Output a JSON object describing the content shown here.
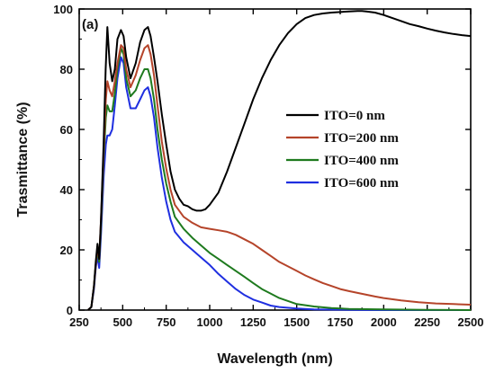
{
  "chart_data": {
    "type": "line",
    "title": "",
    "panel_label": "(a)",
    "xlabel": "Wavelength (nm)",
    "ylabel": "Trasmittance (%)",
    "xlim": [
      250,
      2500
    ],
    "ylim": [
      0,
      100
    ],
    "xticks": [
      250,
      500,
      750,
      1000,
      1250,
      1500,
      1750,
      2000,
      2250,
      2500
    ],
    "yticks": [
      0,
      20,
      40,
      60,
      80,
      100
    ],
    "grid": false,
    "legend_position": "upper-right",
    "series": [
      {
        "name": "ITO=0 nm",
        "color": "#000000",
        "points": [
          [
            300,
            0
          ],
          [
            320,
            1
          ],
          [
            335,
            8
          ],
          [
            345,
            16
          ],
          [
            355,
            22
          ],
          [
            365,
            17
          ],
          [
            375,
            30
          ],
          [
            390,
            55
          ],
          [
            402,
            80
          ],
          [
            412,
            94
          ],
          [
            425,
            82
          ],
          [
            440,
            76
          ],
          [
            455,
            80
          ],
          [
            470,
            90
          ],
          [
            490,
            93
          ],
          [
            505,
            91
          ],
          [
            520,
            84
          ],
          [
            545,
            77
          ],
          [
            575,
            82
          ],
          [
            600,
            89
          ],
          [
            625,
            93
          ],
          [
            645,
            94
          ],
          [
            660,
            91
          ],
          [
            680,
            84
          ],
          [
            700,
            76
          ],
          [
            725,
            65
          ],
          [
            750,
            55
          ],
          [
            775,
            46
          ],
          [
            800,
            40
          ],
          [
            825,
            37
          ],
          [
            850,
            35
          ],
          [
            875,
            34.5
          ],
          [
            900,
            33.5
          ],
          [
            925,
            33
          ],
          [
            950,
            33
          ],
          [
            975,
            33.5
          ],
          [
            1000,
            35
          ],
          [
            1050,
            39
          ],
          [
            1100,
            46
          ],
          [
            1150,
            54
          ],
          [
            1200,
            62
          ],
          [
            1250,
            70
          ],
          [
            1300,
            77
          ],
          [
            1350,
            83
          ],
          [
            1400,
            88
          ],
          [
            1450,
            92
          ],
          [
            1500,
            95
          ],
          [
            1550,
            97
          ],
          [
            1600,
            98
          ],
          [
            1650,
            98.5
          ],
          [
            1700,
            98.8
          ],
          [
            1750,
            99
          ],
          [
            1800,
            99.2
          ],
          [
            1850,
            99.3
          ],
          [
            1875,
            99.3
          ],
          [
            1900,
            99.2
          ],
          [
            1950,
            98.8
          ],
          [
            2000,
            98
          ],
          [
            2050,
            97
          ],
          [
            2100,
            96
          ],
          [
            2150,
            95
          ],
          [
            2200,
            94.3
          ],
          [
            2250,
            93.5
          ],
          [
            2300,
            92.8
          ],
          [
            2350,
            92.2
          ],
          [
            2400,
            91.7
          ],
          [
            2450,
            91.3
          ],
          [
            2500,
            91
          ]
        ]
      },
      {
        "name": "ITO=200 nm",
        "color": "#b5442a",
        "points": [
          [
            300,
            0
          ],
          [
            320,
            1
          ],
          [
            335,
            8
          ],
          [
            345,
            15
          ],
          [
            355,
            21
          ],
          [
            365,
            17
          ],
          [
            375,
            30
          ],
          [
            390,
            52
          ],
          [
            403,
            70
          ],
          [
            412,
            76
          ],
          [
            425,
            73
          ],
          [
            440,
            71
          ],
          [
            455,
            76
          ],
          [
            470,
            82
          ],
          [
            490,
            88
          ],
          [
            505,
            87
          ],
          [
            520,
            80
          ],
          [
            545,
            74
          ],
          [
            575,
            78
          ],
          [
            600,
            83
          ],
          [
            625,
            87
          ],
          [
            645,
            88
          ],
          [
            660,
            85
          ],
          [
            680,
            78
          ],
          [
            700,
            68
          ],
          [
            725,
            56
          ],
          [
            750,
            47
          ],
          [
            775,
            40
          ],
          [
            800,
            35
          ],
          [
            850,
            31
          ],
          [
            900,
            29
          ],
          [
            950,
            27.5
          ],
          [
            1000,
            27
          ],
          [
            1050,
            26.5
          ],
          [
            1100,
            26
          ],
          [
            1150,
            25
          ],
          [
            1200,
            23.5
          ],
          [
            1250,
            22
          ],
          [
            1300,
            20
          ],
          [
            1350,
            18
          ],
          [
            1400,
            16
          ],
          [
            1450,
            14.5
          ],
          [
            1500,
            13
          ],
          [
            1550,
            11.5
          ],
          [
            1600,
            10.2
          ],
          [
            1650,
            9
          ],
          [
            1700,
            8
          ],
          [
            1750,
            7
          ],
          [
            1800,
            6.3
          ],
          [
            1850,
            5.7
          ],
          [
            1900,
            5.1
          ],
          [
            1950,
            4.5
          ],
          [
            2000,
            4
          ],
          [
            2100,
            3.2
          ],
          [
            2200,
            2.6
          ],
          [
            2300,
            2.2
          ],
          [
            2400,
            2
          ],
          [
            2500,
            1.8
          ]
        ]
      },
      {
        "name": "ITO=400 nm",
        "color": "#1e7a1e",
        "points": [
          [
            300,
            0
          ],
          [
            320,
            1
          ],
          [
            335,
            8
          ],
          [
            345,
            15
          ],
          [
            355,
            20
          ],
          [
            365,
            16
          ],
          [
            375,
            28
          ],
          [
            390,
            50
          ],
          [
            403,
            64
          ],
          [
            412,
            68
          ],
          [
            425,
            66
          ],
          [
            440,
            66
          ],
          [
            455,
            72
          ],
          [
            470,
            80
          ],
          [
            490,
            87
          ],
          [
            505,
            85
          ],
          [
            520,
            77
          ],
          [
            545,
            71
          ],
          [
            575,
            73
          ],
          [
            600,
            77
          ],
          [
            625,
            80
          ],
          [
            645,
            80
          ],
          [
            660,
            77
          ],
          [
            680,
            70
          ],
          [
            700,
            60
          ],
          [
            725,
            50
          ],
          [
            750,
            42
          ],
          [
            775,
            36
          ],
          [
            800,
            31
          ],
          [
            850,
            27
          ],
          [
            900,
            24
          ],
          [
            950,
            21.5
          ],
          [
            1000,
            19
          ],
          [
            1050,
            17
          ],
          [
            1100,
            15
          ],
          [
            1150,
            13
          ],
          [
            1200,
            11
          ],
          [
            1250,
            9
          ],
          [
            1300,
            7
          ],
          [
            1350,
            5.5
          ],
          [
            1400,
            4
          ],
          [
            1450,
            3
          ],
          [
            1500,
            2
          ],
          [
            1600,
            1.2
          ],
          [
            1700,
            0.7
          ],
          [
            1800,
            0.4
          ],
          [
            2000,
            0.2
          ],
          [
            2250,
            0.1
          ],
          [
            2500,
            0
          ]
        ]
      },
      {
        "name": "ITO=600 nm",
        "color": "#1f2fe0",
        "points": [
          [
            300,
            0
          ],
          [
            320,
            1
          ],
          [
            335,
            7
          ],
          [
            345,
            14
          ],
          [
            355,
            18
          ],
          [
            365,
            14
          ],
          [
            375,
            25
          ],
          [
            390,
            44
          ],
          [
            403,
            55
          ],
          [
            412,
            58
          ],
          [
            425,
            58
          ],
          [
            440,
            60
          ],
          [
            455,
            68
          ],
          [
            470,
            77
          ],
          [
            490,
            84
          ],
          [
            505,
            82
          ],
          [
            520,
            74
          ],
          [
            545,
            67
          ],
          [
            575,
            67
          ],
          [
            600,
            70
          ],
          [
            625,
            73
          ],
          [
            645,
            74
          ],
          [
            660,
            71
          ],
          [
            680,
            64
          ],
          [
            700,
            54
          ],
          [
            725,
            44
          ],
          [
            750,
            36
          ],
          [
            775,
            30
          ],
          [
            800,
            26
          ],
          [
            850,
            22.5
          ],
          [
            900,
            20
          ],
          [
            950,
            17.5
          ],
          [
            1000,
            15
          ],
          [
            1050,
            12
          ],
          [
            1100,
            9.5
          ],
          [
            1150,
            7
          ],
          [
            1200,
            5
          ],
          [
            1250,
            3.5
          ],
          [
            1300,
            2.5
          ],
          [
            1350,
            1.5
          ],
          [
            1400,
            1
          ],
          [
            1500,
            0.5
          ],
          [
            1600,
            0.2
          ],
          [
            1800,
            0.1
          ],
          [
            2000,
            0
          ],
          [
            2500,
            0
          ]
        ]
      }
    ]
  }
}
